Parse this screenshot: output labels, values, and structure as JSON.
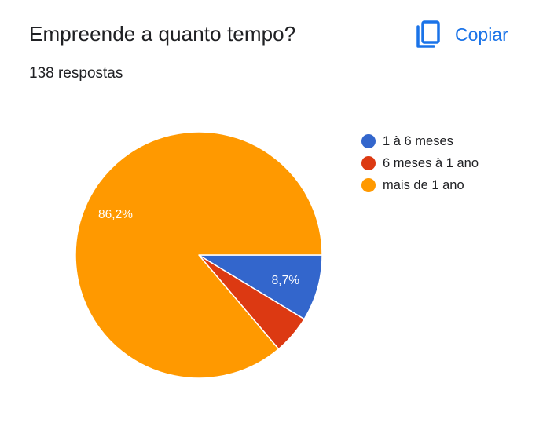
{
  "header": {
    "title": "Empreende a quanto tempo?",
    "response_count": "138 respostas",
    "copy_label": "Copiar",
    "copy_icon": "copy-icon"
  },
  "colors": {
    "blue": "#3366cc",
    "red": "#dc3912",
    "orange": "#ff9900",
    "accent": "#1a73e8"
  },
  "legend": {
    "items": [
      {
        "label": "1 à 6 meses",
        "color": "#3366cc"
      },
      {
        "label": "6 meses à 1 ano",
        "color": "#dc3912"
      },
      {
        "label": "mais de 1 ano",
        "color": "#ff9900"
      }
    ]
  },
  "chart_data": {
    "type": "pie",
    "title": "Empreende a quanto tempo?",
    "subtitle": "138 respostas",
    "categories": [
      "1 à 6 meses",
      "6 meses à 1 ano",
      "mais de 1 ano"
    ],
    "values": [
      8.7,
      5.1,
      86.2
    ],
    "unit": "%",
    "data_labels": [
      "8,7%",
      "",
      "86,2%"
    ],
    "colors": [
      "#3366cc",
      "#dc3912",
      "#ff9900"
    ],
    "legend_position": "right",
    "start_angle_deg": 0,
    "direction": "clockwise"
  }
}
